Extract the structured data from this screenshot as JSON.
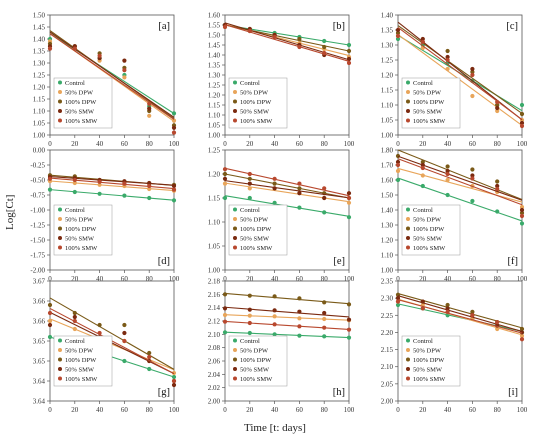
{
  "figure": {
    "ylabel": "Log[Ct]",
    "xlabel": "Time [t: days]"
  },
  "legend": [
    "Control",
    "50% DPW",
    "100% DPW",
    "50% SMW",
    "100% SMW"
  ],
  "colors": {
    "Control": "#3aaa6a",
    "50% DPW": "#e8a55a",
    "100% DPW": "#7a5a18",
    "50% SMW": "#7b2a10",
    "100% SMW": "#b8482e"
  },
  "chart_data": [
    {
      "type": "scatter",
      "panel": "[a]",
      "x": [
        0,
        20,
        40,
        60,
        80,
        100
      ],
      "ylim": [
        1.0,
        1.5
      ],
      "yticks": [
        1.0,
        1.05,
        1.1,
        1.15,
        1.2,
        1.25,
        1.3,
        1.35,
        1.4,
        1.45,
        1.5
      ],
      "series": [
        {
          "name": "Control",
          "values": [
            1.4,
            1.36,
            1.32,
            1.25,
            1.12,
            1.09
          ]
        },
        {
          "name": "50% DPW",
          "values": [
            1.39,
            1.36,
            1.31,
            1.24,
            1.08,
            1.06
          ]
        },
        {
          "name": "100% DPW",
          "values": [
            1.38,
            1.37,
            1.34,
            1.28,
            1.1,
            1.04
          ]
        },
        {
          "name": "50% SMW",
          "values": [
            1.37,
            1.37,
            1.32,
            1.31,
            1.11,
            1.03
          ]
        },
        {
          "name": "100% SMW",
          "values": [
            1.36,
            1.36,
            1.33,
            1.27,
            1.13,
            1.01
          ]
        }
      ]
    },
    {
      "type": "scatter",
      "panel": "[b]",
      "x": [
        0,
        20,
        40,
        60,
        80,
        100
      ],
      "ylim": [
        1.0,
        1.6
      ],
      "yticks": [
        1.0,
        1.05,
        1.1,
        1.15,
        1.2,
        1.25,
        1.3,
        1.35,
        1.4,
        1.45,
        1.5,
        1.55,
        1.6
      ],
      "series": [
        {
          "name": "Control",
          "values": [
            1.55,
            1.53,
            1.51,
            1.49,
            1.47,
            1.45
          ]
        },
        {
          "name": "50% DPW",
          "values": [
            1.54,
            1.53,
            1.5,
            1.46,
            1.43,
            1.39
          ]
        },
        {
          "name": "100% DPW",
          "values": [
            1.55,
            1.52,
            1.5,
            1.48,
            1.44,
            1.42
          ]
        },
        {
          "name": "50% SMW",
          "values": [
            1.55,
            1.53,
            1.5,
            1.45,
            1.4,
            1.38
          ]
        },
        {
          "name": "100% SMW",
          "values": [
            1.54,
            1.52,
            1.49,
            1.44,
            1.41,
            1.36
          ]
        }
      ]
    },
    {
      "type": "scatter",
      "panel": "[c]",
      "x": [
        0,
        20,
        40,
        60,
        80,
        100
      ],
      "ylim": [
        1.0,
        1.4
      ],
      "yticks": [
        1.0,
        1.05,
        1.1,
        1.15,
        1.2,
        1.25,
        1.3,
        1.35,
        1.4
      ],
      "series": [
        {
          "name": "Control",
          "values": [
            1.32,
            1.3,
            1.24,
            1.18,
            1.1,
            1.1
          ]
        },
        {
          "name": "50% DPW",
          "values": [
            1.33,
            1.29,
            1.22,
            1.13,
            1.08,
            1.05
          ]
        },
        {
          "name": "100% DPW",
          "values": [
            1.34,
            1.31,
            1.28,
            1.21,
            1.1,
            1.07
          ]
        },
        {
          "name": "50% SMW",
          "values": [
            1.35,
            1.32,
            1.26,
            1.22,
            1.09,
            1.04
          ]
        },
        {
          "name": "100% SMW",
          "values": [
            1.33,
            1.31,
            1.25,
            1.2,
            1.11,
            1.03
          ]
        }
      ]
    },
    {
      "type": "scatter",
      "panel": "[d]",
      "x": [
        0,
        20,
        40,
        60,
        80,
        100
      ],
      "ylim": [
        -2.0,
        0.0
      ],
      "yticks": [
        -2.0,
        -1.75,
        -1.5,
        -1.25,
        -1.0,
        -0.75,
        -0.5,
        -0.25,
        0.0
      ],
      "series": [
        {
          "name": "Control",
          "values": [
            -0.66,
            -0.7,
            -0.73,
            -0.76,
            -0.8,
            -0.84
          ]
        },
        {
          "name": "50% DPW",
          "values": [
            -0.52,
            -0.55,
            -0.58,
            -0.6,
            -0.65,
            -0.68
          ]
        },
        {
          "name": "100% DPW",
          "values": [
            -0.42,
            -0.44,
            -0.5,
            -0.53,
            -0.56,
            -0.58
          ]
        },
        {
          "name": "50% SMW",
          "values": [
            -0.45,
            -0.47,
            -0.5,
            -0.52,
            -0.55,
            -0.6
          ]
        },
        {
          "name": "100% SMW",
          "values": [
            -0.48,
            -0.5,
            -0.53,
            -0.56,
            -0.6,
            -0.66
          ]
        }
      ]
    },
    {
      "type": "scatter",
      "panel": "[e]",
      "x": [
        0,
        20,
        40,
        60,
        80,
        100
      ],
      "ylim": [
        1.0,
        1.25
      ],
      "yticks": [
        1.0,
        1.05,
        1.1,
        1.15,
        1.2,
        1.25
      ],
      "series": [
        {
          "name": "Control",
          "values": [
            1.15,
            1.15,
            1.14,
            1.13,
            1.12,
            1.11
          ]
        },
        {
          "name": "50% DPW",
          "values": [
            1.18,
            1.17,
            1.17,
            1.16,
            1.15,
            1.14
          ]
        },
        {
          "name": "100% DPW",
          "values": [
            1.2,
            1.19,
            1.18,
            1.17,
            1.16,
            1.15
          ]
        },
        {
          "name": "50% SMW",
          "values": [
            1.19,
            1.18,
            1.17,
            1.16,
            1.15,
            1.16
          ]
        },
        {
          "name": "100% SMW",
          "values": [
            1.21,
            1.2,
            1.19,
            1.18,
            1.17,
            1.15
          ]
        }
      ]
    },
    {
      "type": "scatter",
      "panel": "[f]",
      "x": [
        0,
        20,
        40,
        60,
        80,
        100
      ],
      "ylim": [
        1.0,
        1.8
      ],
      "yticks": [
        1.0,
        1.1,
        1.2,
        1.3,
        1.4,
        1.5,
        1.6,
        1.7,
        1.8
      ],
      "series": [
        {
          "name": "Control",
          "values": [
            1.6,
            1.56,
            1.5,
            1.46,
            1.39,
            1.31
          ]
        },
        {
          "name": "50% DPW",
          "values": [
            1.66,
            1.63,
            1.6,
            1.56,
            1.52,
            1.42
          ]
        },
        {
          "name": "100% DPW",
          "values": [
            1.76,
            1.72,
            1.69,
            1.67,
            1.59,
            1.38
          ]
        },
        {
          "name": "50% SMW",
          "values": [
            1.72,
            1.7,
            1.66,
            1.63,
            1.56,
            1.4
          ]
        },
        {
          "name": "100% SMW",
          "values": [
            1.7,
            1.68,
            1.64,
            1.61,
            1.54,
            1.36
          ]
        }
      ]
    },
    {
      "type": "scatter",
      "panel": "[g]",
      "x": [
        0,
        20,
        40,
        60,
        80,
        100
      ],
      "ylim": [
        3.64,
        3.67
      ],
      "yticks": [
        3.64,
        3.645,
        3.65,
        3.655,
        3.66,
        3.665,
        3.67
      ],
      "yticklabels": [
        "3.64",
        "3.64",
        "3.65",
        "3.65",
        "3.66",
        "3.66",
        "3.67"
      ],
      "series": [
        {
          "name": "Control",
          "values": [
            3.656,
            3.654,
            3.652,
            3.65,
            3.648,
            3.646
          ]
        },
        {
          "name": "50% DPW",
          "values": [
            3.66,
            3.658,
            3.655,
            3.655,
            3.65,
            3.647
          ]
        },
        {
          "name": "100% DPW",
          "values": [
            3.664,
            3.662,
            3.659,
            3.659,
            3.652,
            3.645
          ]
        },
        {
          "name": "50% SMW",
          "values": [
            3.659,
            3.661,
            3.656,
            3.657,
            3.65,
            3.644
          ]
        },
        {
          "name": "100% SMW",
          "values": [
            3.662,
            3.66,
            3.657,
            3.655,
            3.651,
            3.645
          ]
        }
      ]
    },
    {
      "type": "scatter",
      "panel": "[h]",
      "x": [
        0,
        20,
        40,
        60,
        80,
        100
      ],
      "ylim": [
        2.0,
        2.18
      ],
      "yticks": [
        2.0,
        2.02,
        2.04,
        2.06,
        2.08,
        2.1,
        2.12,
        2.14,
        2.16,
        2.18
      ],
      "series": [
        {
          "name": "Control",
          "values": [
            2.103,
            2.102,
            2.1,
            2.098,
            2.097,
            2.095
          ]
        },
        {
          "name": "50% DPW",
          "values": [
            2.129,
            2.128,
            2.127,
            2.124,
            2.123,
            2.121
          ]
        },
        {
          "name": "100% DPW",
          "values": [
            2.16,
            2.158,
            2.157,
            2.154,
            2.148,
            2.145
          ]
        },
        {
          "name": "50% SMW",
          "values": [
            2.139,
            2.137,
            2.136,
            2.134,
            2.132,
            2.122
          ]
        },
        {
          "name": "100% SMW",
          "values": [
            2.119,
            2.117,
            2.115,
            2.112,
            2.11,
            2.107
          ]
        }
      ]
    },
    {
      "type": "scatter",
      "panel": "[i]",
      "x": [
        0,
        20,
        40,
        60,
        80,
        100
      ],
      "ylim": [
        2.0,
        2.35
      ],
      "yticks": [
        2.0,
        2.05,
        2.1,
        2.15,
        2.2,
        2.25,
        2.3,
        2.35
      ],
      "series": [
        {
          "name": "Control",
          "values": [
            2.28,
            2.27,
            2.25,
            2.24,
            2.22,
            2.2
          ]
        },
        {
          "name": "50% DPW",
          "values": [
            2.29,
            2.28,
            2.26,
            2.24,
            2.21,
            2.19
          ]
        },
        {
          "name": "100% DPW",
          "values": [
            2.31,
            2.29,
            2.28,
            2.26,
            2.23,
            2.21
          ]
        },
        {
          "name": "50% SMW",
          "values": [
            2.3,
            2.29,
            2.27,
            2.25,
            2.22,
            2.2
          ]
        },
        {
          "name": "100% SMW",
          "values": [
            2.29,
            2.27,
            2.26,
            2.25,
            2.23,
            2.18
          ]
        }
      ]
    }
  ]
}
